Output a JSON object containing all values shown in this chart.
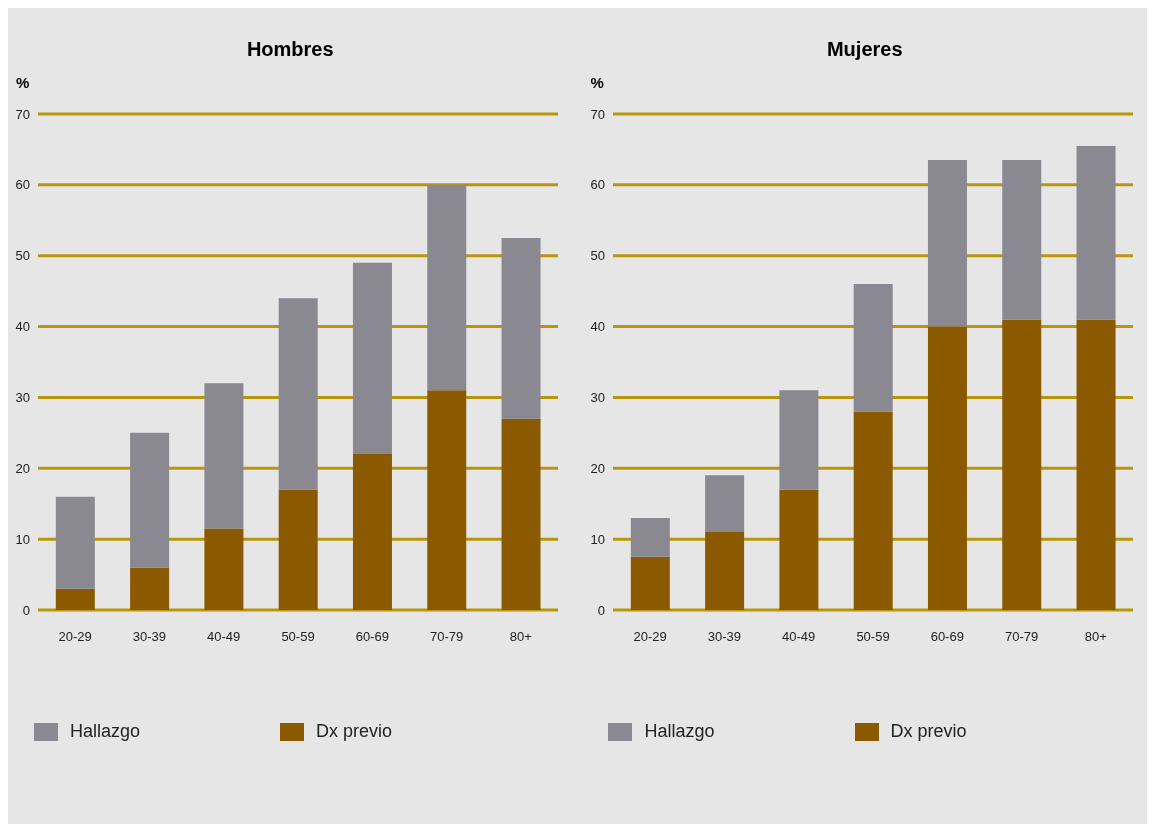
{
  "chart_data": [
    {
      "type": "bar",
      "title": "Hombres",
      "ylabel": "%",
      "categories": [
        "20-29",
        "30-39",
        "40-49",
        "50-59",
        "60-69",
        "70-79",
        "80+"
      ],
      "stacked": true,
      "series": [
        {
          "name": "Dx previo",
          "color": "#8b5a00",
          "values": [
            3,
            6,
            11.5,
            17,
            22,
            31,
            27
          ]
        },
        {
          "name": "Hallazgo",
          "color": "#8a8890",
          "values": [
            13,
            19,
            20.5,
            27,
            27,
            29,
            25.5
          ]
        }
      ],
      "ylim": [
        0,
        70
      ],
      "yticks": [
        0,
        10,
        20,
        30,
        40,
        50,
        60,
        70
      ],
      "grid": "y",
      "legend": "bottom"
    },
    {
      "type": "bar",
      "title": "Mujeres",
      "ylabel": "%",
      "categories": [
        "20-29",
        "30-39",
        "40-49",
        "50-59",
        "60-69",
        "70-79",
        "80+"
      ],
      "stacked": true,
      "series": [
        {
          "name": "Dx previo",
          "color": "#8b5a00",
          "values": [
            7.5,
            11,
            17,
            28,
            40,
            41,
            41
          ]
        },
        {
          "name": "Hallazgo",
          "color": "#8a8890",
          "values": [
            5.5,
            8,
            14,
            18,
            23.5,
            22.5,
            24.5
          ]
        }
      ],
      "ylim": [
        0,
        70
      ],
      "yticks": [
        0,
        10,
        20,
        30,
        40,
        50,
        60,
        70
      ],
      "grid": "y",
      "legend": "bottom"
    }
  ]
}
